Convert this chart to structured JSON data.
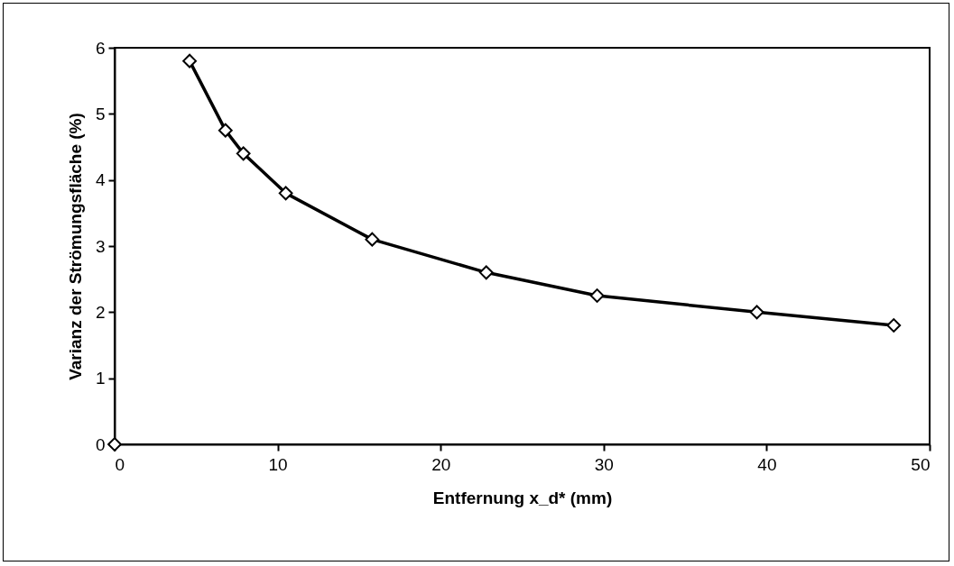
{
  "chart_data": {
    "type": "line",
    "xlabel": "Entfernung x_d* (mm)",
    "ylabel": "Varianz der Strömungsfläche (%)",
    "xlim": [
      0,
      50
    ],
    "xticks": [
      0,
      10,
      20,
      30,
      40,
      50
    ],
    "ylim": [
      0,
      6
    ],
    "yticks": [
      0,
      1,
      2,
      3,
      4,
      5,
      6
    ],
    "marker": "diamond",
    "series": [
      {
        "type": "scatter",
        "color": "#000000",
        "x": [
          0
        ],
        "values": [
          0
        ]
      },
      {
        "color": "#000000",
        "x": [
          4.6,
          6.8,
          7.9,
          10.5,
          15.8,
          22.8,
          29.6,
          39.4,
          47.8
        ],
        "values": [
          5.8,
          4.75,
          4.4,
          3.8,
          3.1,
          2.6,
          2.25,
          2,
          1.8
        ]
      }
    ]
  }
}
